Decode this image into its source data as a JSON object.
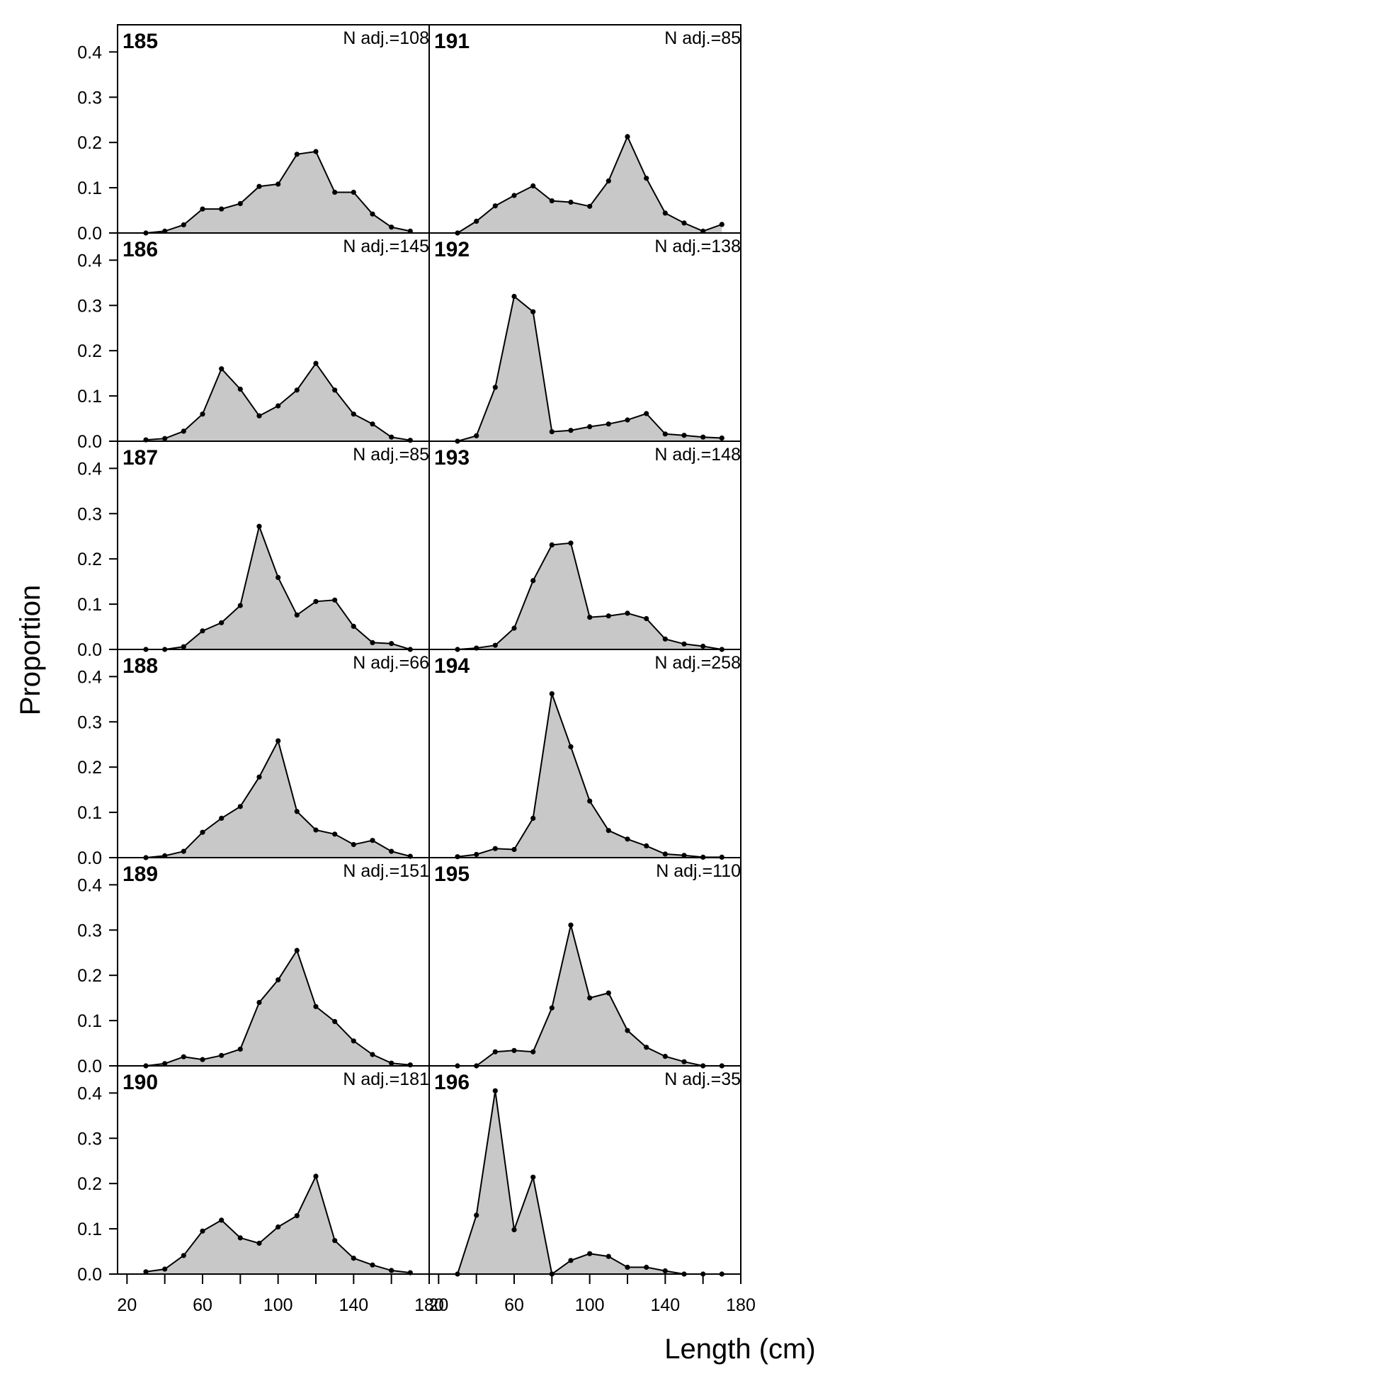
{
  "chart_data": {
    "type": "area",
    "title": "",
    "xlabel": "Length (cm)",
    "ylabel": "Proportion",
    "xlim": [
      15,
      180
    ],
    "ylim": [
      0,
      0.46
    ],
    "x_ticks": [
      20,
      60,
      100,
      140,
      180
    ],
    "x_minor_ticks": [
      40,
      80,
      120,
      160
    ],
    "y_ticks": [
      0.0,
      0.1,
      0.2,
      0.3,
      0.4
    ],
    "y_tick_labels": [
      "0.0",
      "0.1",
      "0.2",
      "0.3",
      "0.4"
    ],
    "x": [
      30,
      40,
      50,
      60,
      70,
      80,
      90,
      100,
      110,
      120,
      130,
      140,
      150,
      160,
      170
    ],
    "fill_color": "#c8c8c8",
    "line_color": "#000000",
    "grid": false,
    "layout": "6 rows x 2 columns; left column panels 185-190, right column panels 191-196",
    "panels": [
      {
        "label": "185",
        "n_adj": "N adj.=108",
        "values": [
          0.0,
          0.004,
          0.018,
          0.053,
          0.053,
          0.065,
          0.103,
          0.108,
          0.174,
          0.18,
          0.09,
          0.09,
          0.042,
          0.013,
          0.004
        ]
      },
      {
        "label": "186",
        "n_adj": "N adj.=145",
        "values": [
          0.003,
          0.006,
          0.022,
          0.06,
          0.16,
          0.115,
          0.056,
          0.078,
          0.113,
          0.172,
          0.113,
          0.06,
          0.038,
          0.009,
          0.002
        ]
      },
      {
        "label": "187",
        "n_adj": "N adj.=85",
        "values": [
          0.0,
          0.0,
          0.006,
          0.041,
          0.059,
          0.097,
          0.272,
          0.159,
          0.076,
          0.106,
          0.109,
          0.051,
          0.015,
          0.013,
          0.0
        ]
      },
      {
        "label": "188",
        "n_adj": "N adj.=66",
        "values": [
          0.0,
          0.004,
          0.014,
          0.056,
          0.087,
          0.113,
          0.178,
          0.258,
          0.102,
          0.061,
          0.052,
          0.029,
          0.038,
          0.014,
          0.003
        ]
      },
      {
        "label": "189",
        "n_adj": "N adj.=151",
        "values": [
          0.0,
          0.005,
          0.02,
          0.014,
          0.023,
          0.037,
          0.14,
          0.19,
          0.255,
          0.131,
          0.098,
          0.055,
          0.025,
          0.006,
          0.002
        ]
      },
      {
        "label": "190",
        "n_adj": "N adj.=181",
        "values": [
          0.005,
          0.011,
          0.041,
          0.095,
          0.119,
          0.08,
          0.068,
          0.104,
          0.129,
          0.216,
          0.074,
          0.035,
          0.02,
          0.008,
          0.003
        ]
      },
      {
        "label": "191",
        "n_adj": "N adj.=85",
        "values": [
          0.0,
          0.026,
          0.06,
          0.083,
          0.104,
          0.071,
          0.068,
          0.059,
          0.115,
          0.213,
          0.121,
          0.044,
          0.022,
          0.004,
          0.019
        ]
      },
      {
        "label": "192",
        "n_adj": "N adj.=138",
        "values": [
          0.0,
          0.012,
          0.119,
          0.32,
          0.286,
          0.021,
          0.024,
          0.032,
          0.038,
          0.047,
          0.061,
          0.016,
          0.013,
          0.009,
          0.007
        ]
      },
      {
        "label": "193",
        "n_adj": "N adj.=148",
        "values": [
          0.0,
          0.003,
          0.009,
          0.047,
          0.152,
          0.231,
          0.235,
          0.071,
          0.074,
          0.08,
          0.068,
          0.023,
          0.012,
          0.007,
          0.0
        ]
      },
      {
        "label": "194",
        "n_adj": "N adj.=258",
        "values": [
          0.002,
          0.007,
          0.02,
          0.018,
          0.087,
          0.362,
          0.245,
          0.125,
          0.06,
          0.041,
          0.026,
          0.008,
          0.005,
          0.001,
          0.001
        ]
      },
      {
        "label": "195",
        "n_adj": "N adj.=110",
        "values": [
          0.0,
          0.0,
          0.031,
          0.034,
          0.031,
          0.128,
          0.311,
          0.15,
          0.161,
          0.078,
          0.041,
          0.021,
          0.009,
          0.0,
          0.0
        ]
      },
      {
        "label": "196",
        "n_adj": "N adj.=35",
        "values": [
          0.0,
          0.13,
          0.405,
          0.098,
          0.214,
          0.0,
          0.03,
          0.045,
          0.039,
          0.015,
          0.015,
          0.007,
          0.0,
          0.0,
          0.0
        ]
      }
    ]
  }
}
